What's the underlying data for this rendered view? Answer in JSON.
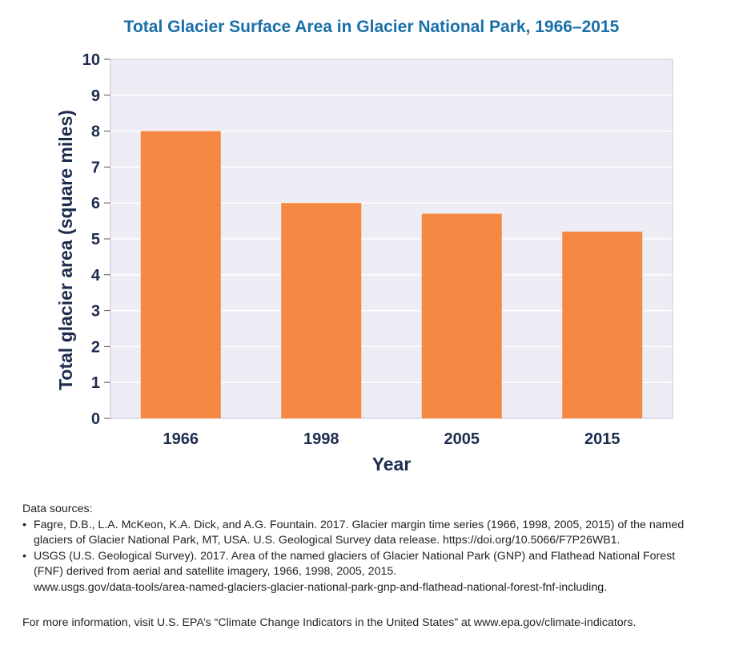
{
  "chart_data": {
    "type": "bar",
    "title": "Total Glacier Surface Area in Glacier National Park, 1966–2015",
    "xlabel": "Year",
    "ylabel": "Total glacier area (square miles)",
    "categories": [
      "1966",
      "1998",
      "2005",
      "2015"
    ],
    "values": [
      8.0,
      6.0,
      5.7,
      5.2
    ],
    "ylim": [
      0,
      10
    ],
    "yticks": [
      "0",
      "1",
      "2",
      "3",
      "4",
      "5",
      "6",
      "7",
      "8",
      "9",
      "10"
    ],
    "grid": true,
    "legend": "none",
    "colors": {
      "bar": "#f58842",
      "plot_background": "#eeecf5",
      "grid": "#ffffff",
      "axis_text": "#1d2b4d",
      "title": "#1a6fa8"
    }
  },
  "sources": {
    "heading": "Data sources:",
    "items": [
      {
        "lines": [
          "Fagre, D.B., L.A. McKeon, K.A. Dick, and A.G. Fountain. 2017. Glacier margin time series (1966, 1998, 2005, 2015) of the named",
          "glaciers of Glacier National Park, MT, USA. U.S. Geological Survey data release. https://doi.org/10.5066/F7P26WB1."
        ]
      },
      {
        "lines": [
          "USGS (U.S. Geological Survey). 2017. Area of the named glaciers of Glacier National Park (GNP) and Flathead National Forest",
          "(FNF) derived from aerial and satellite imagery, 1966, 1998, 2005, 2015.",
          "www.usgs.gov/data-tools/area-named-glaciers-glacier-national-park-gnp-and-flathead-national-forest-fnf-including."
        ]
      }
    ]
  },
  "more_info": "For more information, visit U.S. EPA’s “Climate Change Indicators in the United States” at www.epa.gov/climate-indicators."
}
